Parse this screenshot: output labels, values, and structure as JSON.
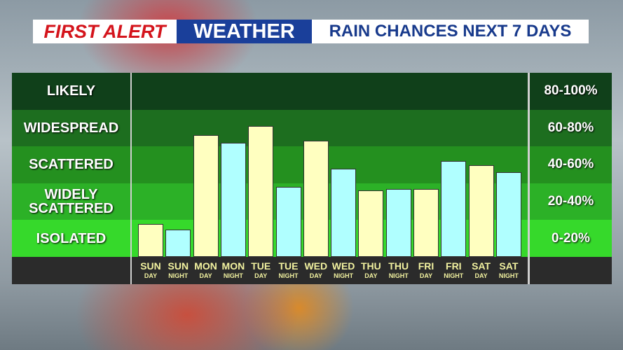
{
  "header": {
    "brand_first": "FIRST ALERT",
    "brand_second": "WEATHER",
    "title": "RAIN CHANCES NEXT 7 DAYS"
  },
  "chart_data": {
    "type": "bar",
    "ylim": [
      0,
      100
    ],
    "bands": [
      {
        "label": "LIKELY",
        "range": "80-100%",
        "from": 80,
        "to": 100,
        "color": "#10401a"
      },
      {
        "label": "WIDESPREAD",
        "range": "60-80%",
        "from": 60,
        "to": 80,
        "color": "#1d6e1f"
      },
      {
        "label": "SCATTERED",
        "range": "40-60%",
        "from": 40,
        "to": 60,
        "color": "#24901f"
      },
      {
        "label": "WIDELY SCATTERED",
        "range": "20-40%",
        "from": 20,
        "to": 40,
        "color": "#2cb127"
      },
      {
        "label": "ISOLATED",
        "range": "0-20%",
        "from": 0,
        "to": 20,
        "color": "#36d92b"
      }
    ],
    "categories": [
      [
        "SUN",
        "DAY"
      ],
      [
        "SUN",
        "NIGHT"
      ],
      [
        "MON",
        "DAY"
      ],
      [
        "MON",
        "NIGHT"
      ],
      [
        "TUE",
        "DAY"
      ],
      [
        "TUE",
        "NIGHT"
      ],
      [
        "WED",
        "DAY"
      ],
      [
        "WED",
        "NIGHT"
      ],
      [
        "THU",
        "DAY"
      ],
      [
        "THU",
        "NIGHT"
      ],
      [
        "FRI",
        "DAY"
      ],
      [
        "FRI",
        "NIGHT"
      ],
      [
        "SAT",
        "DAY"
      ],
      [
        "SAT",
        "NIGHT"
      ]
    ],
    "values": [
      18,
      15,
      66,
      62,
      71,
      38,
      63,
      48,
      36,
      37,
      37,
      52,
      50,
      46
    ],
    "colors": [
      "#ffffc0",
      "#b0ffff",
      "#ffffc0",
      "#b0ffff",
      "#ffffc0",
      "#b0ffff",
      "#ffffc0",
      "#b0ffff",
      "#ffffc0",
      "#b0ffff",
      "#ffffc0",
      "#b0ffff",
      "#ffffc0",
      "#b0ffff"
    ]
  }
}
